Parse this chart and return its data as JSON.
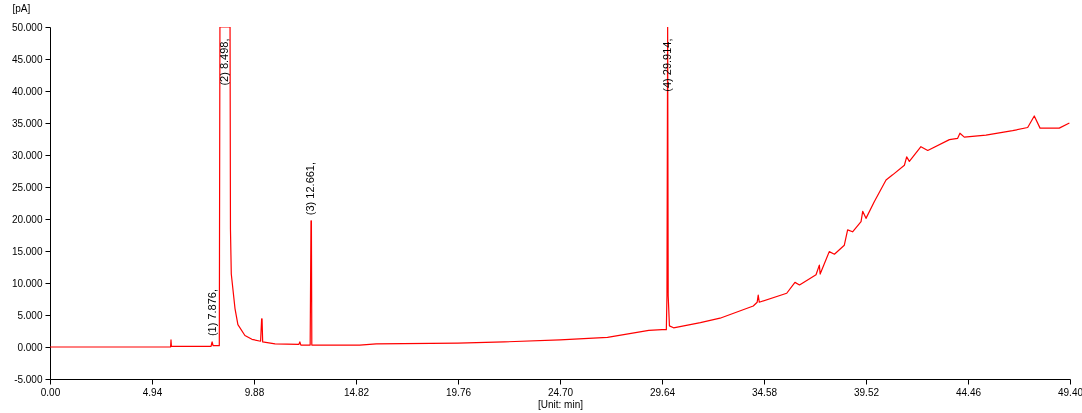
{
  "chart_data": {
    "type": "line",
    "xlabel": "[Unit: min]",
    "ylabel": "[pA]",
    "xlim": [
      0,
      49.4
    ],
    "xticks": [
      {
        "value": 0,
        "label": "0.00"
      },
      {
        "value": 4.94,
        "label": "4.94"
      },
      {
        "value": 9.88,
        "label": "9.88"
      },
      {
        "value": 14.82,
        "label": "14.82"
      },
      {
        "value": 19.76,
        "label": "19.76"
      },
      {
        "value": 24.7,
        "label": "24.70"
      },
      {
        "value": 29.64,
        "label": "29.64"
      },
      {
        "value": 34.58,
        "label": "34.58"
      },
      {
        "value": 39.52,
        "label": "39.52"
      },
      {
        "value": 44.46,
        "label": "44.46"
      },
      {
        "value": 49.4,
        "label": "49.40"
      }
    ],
    "ylim": [
      -5,
      50
    ],
    "yticks": [
      {
        "value": -5,
        "label": "-5.000"
      },
      {
        "value": 0,
        "label": "0.000"
      },
      {
        "value": 5,
        "label": "5.000"
      },
      {
        "value": 10,
        "label": "10.000"
      },
      {
        "value": 15,
        "label": "15.000"
      },
      {
        "value": 20,
        "label": "20.000"
      },
      {
        "value": 25,
        "label": "25.000"
      },
      {
        "value": 30,
        "label": "30.000"
      },
      {
        "value": 35,
        "label": "35.000"
      },
      {
        "value": 40,
        "label": "40.000"
      },
      {
        "value": 45,
        "label": "45.000"
      },
      {
        "value": 50,
        "label": "50.000"
      }
    ],
    "series": [
      {
        "color": "#ff0000",
        "x": [
          0,
          5.84,
          5.86,
          5.88,
          7.8,
          7.85,
          7.9,
          8.2,
          8.23,
          8.72,
          8.74,
          8.78,
          8.96,
          9.1,
          9.44,
          9.78,
          10.2,
          10.25,
          10.27,
          10.3,
          10.9,
          12.05,
          12.1,
          12.15,
          12.6,
          12.64,
          12.66,
          12.68,
          12.72,
          15.0,
          15.8,
          19.76,
          22.0,
          24.7,
          27.0,
          29.0,
          29.64,
          29.85,
          29.88,
          29.914,
          29.94,
          30.0,
          30.2,
          31.5,
          32.45,
          34.06,
          34.25,
          34.3,
          34.35,
          35.68,
          36.08,
          36.3,
          37.1,
          37.26,
          37.3,
          37.74,
          37.99,
          38.47,
          38.63,
          38.87,
          39.28,
          39.36,
          39.52,
          39.92,
          40.49,
          40.81,
          41.38,
          41.49,
          41.62,
          42.18,
          42.51,
          43.56,
          43.96,
          44.07,
          44.28,
          45.33,
          46.62,
          47.35,
          47.67,
          47.95,
          48.88,
          49.37
        ],
        "values": [
          0,
          0,
          1.1,
          0.1,
          0.1,
          0.8,
          0.2,
          0.2,
          50,
          50,
          18.4,
          11.4,
          6,
          3.5,
          1.8,
          1.2,
          0.9,
          4.4,
          4.4,
          0.8,
          0.5,
          0.4,
          0.8,
          0.3,
          0.3,
          19.7,
          19.7,
          0.3,
          0.3,
          0.3,
          0.5,
          0.6,
          0.8,
          1.1,
          1.5,
          2.6,
          2.7,
          2.7,
          8,
          50,
          8,
          3.3,
          3.0,
          3.8,
          4.5,
          6.4,
          7.0,
          8.1,
          7.0,
          8.4,
          10.1,
          9.7,
          11.3,
          12.8,
          11.4,
          14.9,
          14.5,
          15.9,
          18.3,
          18.0,
          19.6,
          21.2,
          20.1,
          22.7,
          26.1,
          26.9,
          28.4,
          29.7,
          29.0,
          31.3,
          30.7,
          32.4,
          32.6,
          33.4,
          32.8,
          33.1,
          33.8,
          34.3,
          36.1,
          34.2,
          34.2,
          35.0
        ]
      }
    ],
    "annotations": [
      {
        "text": "(1) 7.876,",
        "x": 7.876,
        "y": 0.8
      },
      {
        "text": "(2) 8.498,",
        "x": 8.498,
        "y": 50
      },
      {
        "text": "(3) 12.661,",
        "x": 12.661,
        "y": 19.7
      },
      {
        "text": "(4) 29.914,",
        "x": 29.914,
        "y": 50
      }
    ]
  }
}
